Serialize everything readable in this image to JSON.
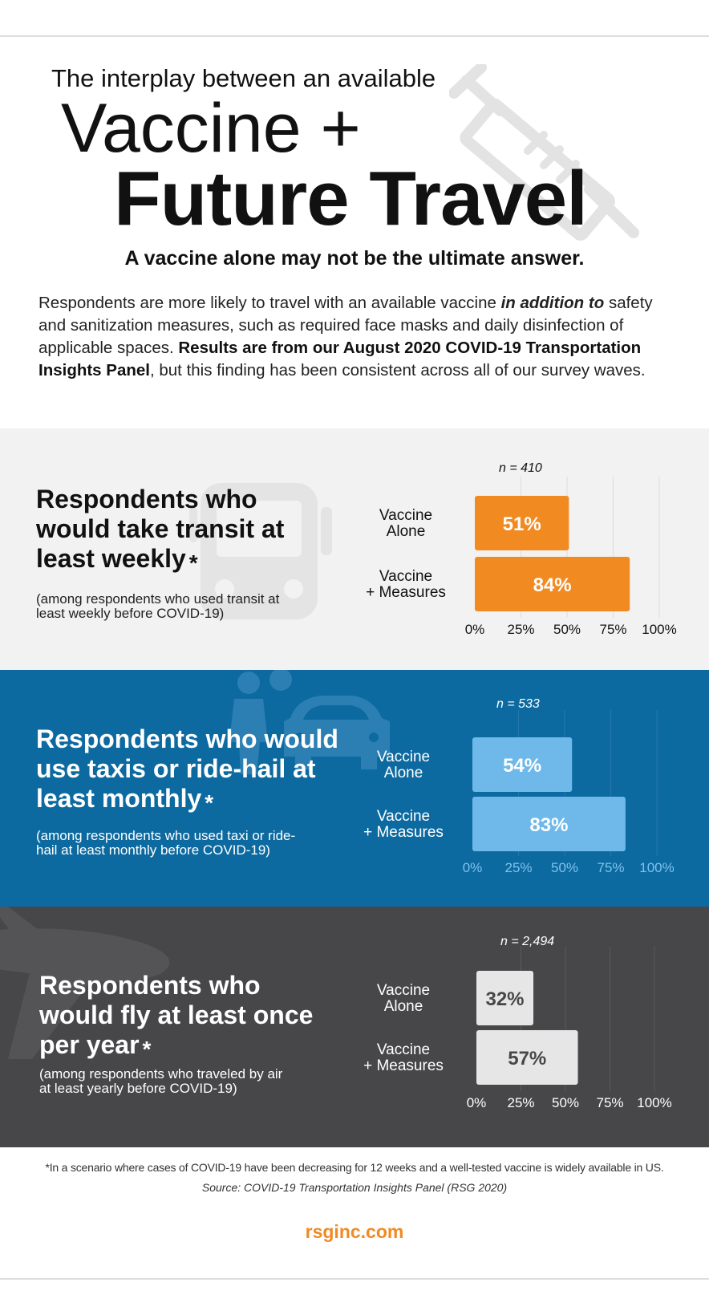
{
  "header": {
    "title_line1": "The interplay between an available",
    "title_line2": "Vaccine +",
    "title_line3": "Future Travel",
    "subtitle": "A vaccine alone may not be the ultimate answer."
  },
  "intro": {
    "part1": "Respondents are more likely to travel with an available vaccine ",
    "emph": "in addition to",
    "part2": " safety and sanitization measures, such as required face masks and daily disinfection of applicable spaces. ",
    "bold": "Results are from our August 2020 COVID-19 Transportation Insights Panel",
    "part3": ", but this finding has been consistent across all of our survey waves."
  },
  "panels": [
    {
      "heading": "Respondents who would take transit at least weekly",
      "asterisk": "*",
      "note": "(among respondents who used transit at least weekly before COVID-19)",
      "icon": "bus-icon"
    },
    {
      "heading": "Respondents who would use taxis or ride-hail at least monthly",
      "asterisk": "*",
      "note": "(among respondents who used taxi or ride-hail at least monthly before COVID-19)",
      "icon": "rideshare-car-icon"
    },
    {
      "heading": "Respondents who would fly at least once per year",
      "asterisk": "*",
      "note": "(among respondents who traveled by air at least yearly before COVID-19)",
      "icon": "airplane-icon"
    }
  ],
  "chart_data": [
    {
      "type": "bar",
      "orientation": "horizontal",
      "annotation": "n = 410",
      "categories": [
        "Vaccine Alone",
        "Vaccine + Measures"
      ],
      "values": [
        51,
        84
      ],
      "data_labels": [
        "51%",
        "84%"
      ],
      "xlim": [
        0,
        100
      ],
      "ticks": [
        "0%",
        "25%",
        "50%",
        "75%",
        "100%"
      ],
      "bar_color": "#f18a21",
      "label_color": "#ffffff",
      "tick_color": "#111111",
      "category_color": "#111111",
      "grid": true
    },
    {
      "type": "bar",
      "orientation": "horizontal",
      "annotation": "n = 533",
      "categories": [
        "Vaccine Alone",
        "Vaccine + Measures"
      ],
      "values": [
        54,
        83
      ],
      "data_labels": [
        "54%",
        "83%"
      ],
      "xlim": [
        0,
        100
      ],
      "ticks": [
        "0%",
        "25%",
        "50%",
        "75%",
        "100%"
      ],
      "bar_color": "#6fb8ea",
      "label_color": "#ffffff",
      "tick_color": "#7ec2ee",
      "category_color": "#ffffff",
      "grid": true
    },
    {
      "type": "bar",
      "orientation": "horizontal",
      "annotation": "n = 2,494",
      "categories": [
        "Vaccine Alone",
        "Vaccine + Measures"
      ],
      "values": [
        32,
        57
      ],
      "data_labels": [
        "32%",
        "57%"
      ],
      "xlim": [
        0,
        100
      ],
      "ticks": [
        "0%",
        "25%",
        "50%",
        "75%",
        "100%"
      ],
      "bar_color": "#e6e6e6",
      "label_color": "#474749",
      "tick_color": "#ffffff",
      "category_color": "#ffffff",
      "grid": true
    }
  ],
  "footer": {
    "footnote_mark": "*",
    "footnote": "In a scenario where cases of COVID-19 have been decreasing for 12 weeks and a well-tested vaccine is widely available in US.",
    "source": "Source: COVID-19 Transportation Insights Panel (RSG 2020)",
    "site": "rsginc.com"
  }
}
